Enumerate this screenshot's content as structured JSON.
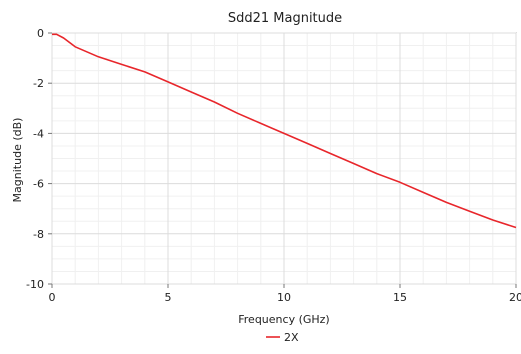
{
  "chart_data": {
    "type": "line",
    "title": "Sdd21 Magnitude",
    "xlabel": "Frequency (GHz)",
    "ylabel": "Magnitude (dB)",
    "xlim": [
      0,
      20
    ],
    "ylim": [
      -10,
      0
    ],
    "xticks": [
      0,
      5,
      10,
      15,
      20
    ],
    "yticks": [
      0,
      -2,
      -4,
      -6,
      -8,
      -10
    ],
    "grid": true,
    "legend_position": "bottom-center",
    "series": [
      {
        "name": "2X",
        "color": "#e8262b",
        "x": [
          0.0,
          0.2,
          0.5,
          1.0,
          1.5,
          2.0,
          3.0,
          4.0,
          5.0,
          6.0,
          7.0,
          8.0,
          9.0,
          10.0,
          11.0,
          12.0,
          13.0,
          14.0,
          15.0,
          16.0,
          17.0,
          18.0,
          19.0,
          20.0
        ],
        "y": [
          -0.05,
          -0.05,
          -0.2,
          -0.55,
          -0.75,
          -0.95,
          -1.25,
          -1.55,
          -1.95,
          -2.35,
          -2.75,
          -3.2,
          -3.6,
          -4.0,
          -4.4,
          -4.8,
          -5.2,
          -5.6,
          -5.95,
          -6.35,
          -6.75,
          -7.1,
          -7.45,
          -7.75
        ]
      }
    ]
  }
}
